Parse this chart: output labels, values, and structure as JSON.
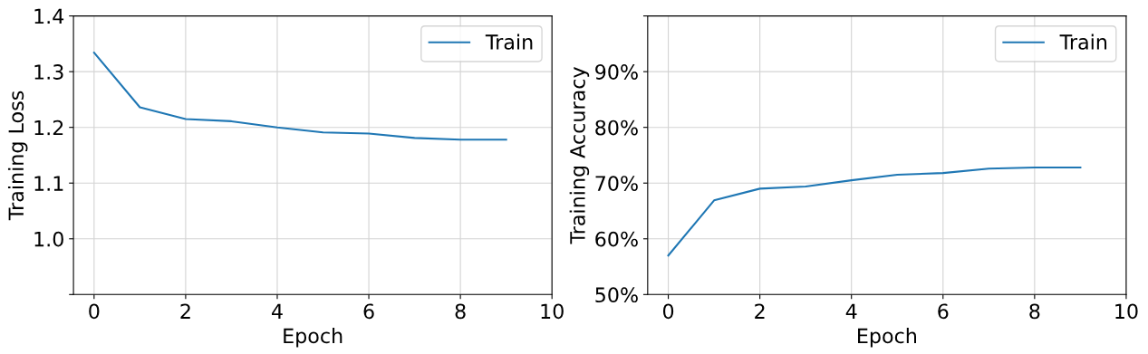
{
  "chart_data": [
    {
      "type": "line",
      "xlabel": "Epoch",
      "ylabel": "Training Loss",
      "x": [
        0,
        1,
        2,
        3,
        4,
        5,
        6,
        7,
        8,
        9
      ],
      "series": [
        {
          "name": "Train",
          "color": "#1f77b4",
          "values": [
            1.334,
            1.236,
            1.215,
            1.211,
            1.2,
            1.191,
            1.189,
            1.181,
            1.178,
            1.178
          ]
        }
      ],
      "xlim": [
        -0.45,
        10
      ],
      "xticks": [
        0,
        2,
        4,
        6,
        8,
        10
      ],
      "ylim": [
        0.9,
        1.4
      ],
      "yticks": [
        {
          "value": 0.9,
          "label": null
        },
        {
          "value": 1.0,
          "label": "1.0"
        },
        1.1,
        1.2,
        1.3,
        1.4
      ],
      "grid": true,
      "legend": "top right"
    },
    {
      "type": "line",
      "xlabel": "Epoch",
      "ylabel": "Training Accuracy",
      "x": [
        0,
        1,
        2,
        3,
        4,
        5,
        6,
        7,
        8,
        9
      ],
      "series": [
        {
          "name": "Train",
          "color": "#1f77b4",
          "values": [
            57.0,
            66.9,
            69.0,
            69.4,
            70.5,
            71.5,
            71.8,
            72.6,
            72.8,
            72.8
          ]
        }
      ],
      "xlim": [
        -0.45,
        10
      ],
      "xticks": [
        0,
        2,
        4,
        6,
        8,
        10
      ],
      "ylim": [
        50,
        100
      ],
      "yticks": [
        {
          "value": 50,
          "label": "50%"
        },
        {
          "value": 60,
          "label": "60%"
        },
        {
          "value": 70,
          "label": "70%"
        },
        {
          "value": 80,
          "label": "80%"
        },
        {
          "value": 90,
          "label": "90%"
        },
        {
          "value": 100,
          "label": null
        }
      ],
      "grid": true,
      "legend": "top right"
    }
  ]
}
